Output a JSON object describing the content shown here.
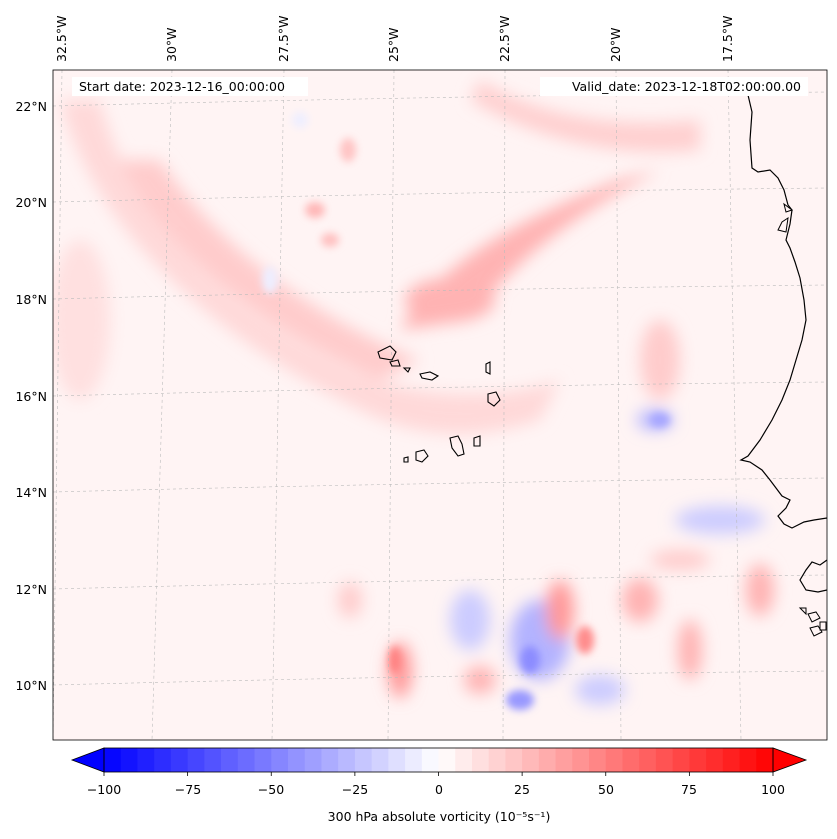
{
  "map": {
    "start_date": "Start date: 2023-12-16_00:00:00",
    "valid_date": "Valid_date: 2023-12-18T02:00:00.00",
    "lon_labels": [
      "32.5°W",
      "30°W",
      "27.5°W",
      "25°W",
      "22.5°W",
      "20°W",
      "17.5°W"
    ],
    "lat_labels": [
      "22°N",
      "20°N",
      "18°N",
      "16°N",
      "14°N",
      "12°N",
      "10°N"
    ],
    "field_colors": {
      "background": "#fff4f4",
      "light_red": "#ffd9d9",
      "red": "#ffb3b3",
      "strong_red": "#ff8080",
      "light_blue": "#e6e6ff",
      "blue": "#b3b3ff",
      "strong_blue": "#8080ff"
    }
  },
  "colorbar": {
    "label": "300 hPa absolute vorticity (10⁻⁵s⁻¹)",
    "ticks": [
      "−100",
      "−75",
      "−50",
      "−25",
      "0",
      "25",
      "50",
      "75",
      "100"
    ],
    "min": -100,
    "max": 100,
    "color_min": "#0000ff",
    "color_max": "#ff0000"
  }
}
